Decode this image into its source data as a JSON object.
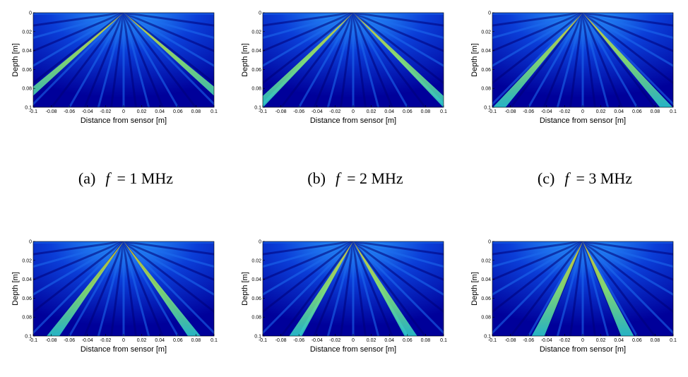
{
  "chart_data": [
    {
      "type": "heatmap",
      "xlabel": "Distance from sensor [m]",
      "ylabel": "Depth [m]",
      "xlim": [
        -0.1,
        0.1
      ],
      "xticks": [
        -0.1,
        -0.08,
        -0.06,
        -0.04,
        -0.02,
        0,
        0.02,
        0.04,
        0.06,
        0.08,
        0.1
      ],
      "ylim": [
        0,
        0.1
      ],
      "yticks": [
        0,
        0.02,
        0.04,
        0.06,
        0.08,
        0.1
      ],
      "y_reversed": true,
      "caption": {
        "label": "(a)",
        "symbol": "f",
        "text": "= 1 MHz"
      }
    },
    {
      "type": "heatmap",
      "xlabel": "Distance from sensor [m]",
      "ylabel": "Depth [m]",
      "xlim": [
        -0.1,
        0.1
      ],
      "xticks": [
        -0.1,
        -0.08,
        -0.06,
        -0.04,
        -0.02,
        0,
        0.02,
        0.04,
        0.06,
        0.08,
        0.1
      ],
      "ylim": [
        0,
        0.1
      ],
      "yticks": [
        0,
        0.02,
        0.04,
        0.06,
        0.08,
        0.1
      ],
      "y_reversed": true,
      "caption": {
        "label": "(b)",
        "symbol": "f",
        "text": "= 2 MHz"
      }
    },
    {
      "type": "heatmap",
      "xlabel": "Distance from sensor [m]",
      "ylabel": "Depth [m]",
      "xlim": [
        -0.1,
        0.1
      ],
      "xticks": [
        -0.1,
        -0.08,
        -0.06,
        -0.04,
        -0.02,
        0,
        0.02,
        0.04,
        0.06,
        0.08,
        0.1
      ],
      "ylim": [
        0,
        0.1
      ],
      "yticks": [
        0,
        0.02,
        0.04,
        0.06,
        0.08,
        0.1
      ],
      "y_reversed": true,
      "caption": {
        "label": "(c)",
        "symbol": "f",
        "text": "= 3 MHz"
      }
    },
    {
      "type": "heatmap",
      "xlabel": "Distance from sensor [m]",
      "ylabel": "Depth [m]",
      "xlim": [
        -0.1,
        0.1
      ],
      "xticks": [
        -0.1,
        -0.08,
        -0.06,
        -0.04,
        -0.02,
        0,
        0.02,
        0.04,
        0.06,
        0.08,
        0.1
      ],
      "ylim": [
        0,
        0.1
      ],
      "yticks": [
        0,
        0.02,
        0.04,
        0.06,
        0.08,
        0.1
      ],
      "y_reversed": true
    },
    {
      "type": "heatmap",
      "xlabel": "Distance from sensor [m]",
      "ylabel": "Depth [m]",
      "xlim": [
        -0.1,
        0.1
      ],
      "xticks": [
        -0.1,
        -0.08,
        -0.06,
        -0.04,
        -0.02,
        0,
        0.02,
        0.04,
        0.06,
        0.08,
        0.1
      ],
      "ylim": [
        0,
        0.1
      ],
      "yticks": [
        0,
        0.02,
        0.04,
        0.06,
        0.08,
        0.1
      ],
      "y_reversed": true
    },
    {
      "type": "heatmap",
      "xlabel": "Distance from sensor [m]",
      "ylabel": "Depth [m]",
      "xlim": [
        -0.1,
        0.1
      ],
      "xticks": [
        -0.1,
        -0.08,
        -0.06,
        -0.04,
        -0.02,
        0,
        0.02,
        0.04,
        0.06,
        0.08,
        0.1
      ],
      "ylim": [
        0,
        0.1
      ],
      "yticks": [
        0,
        0.02,
        0.04,
        0.06,
        0.08,
        0.1
      ],
      "y_reversed": true
    }
  ]
}
